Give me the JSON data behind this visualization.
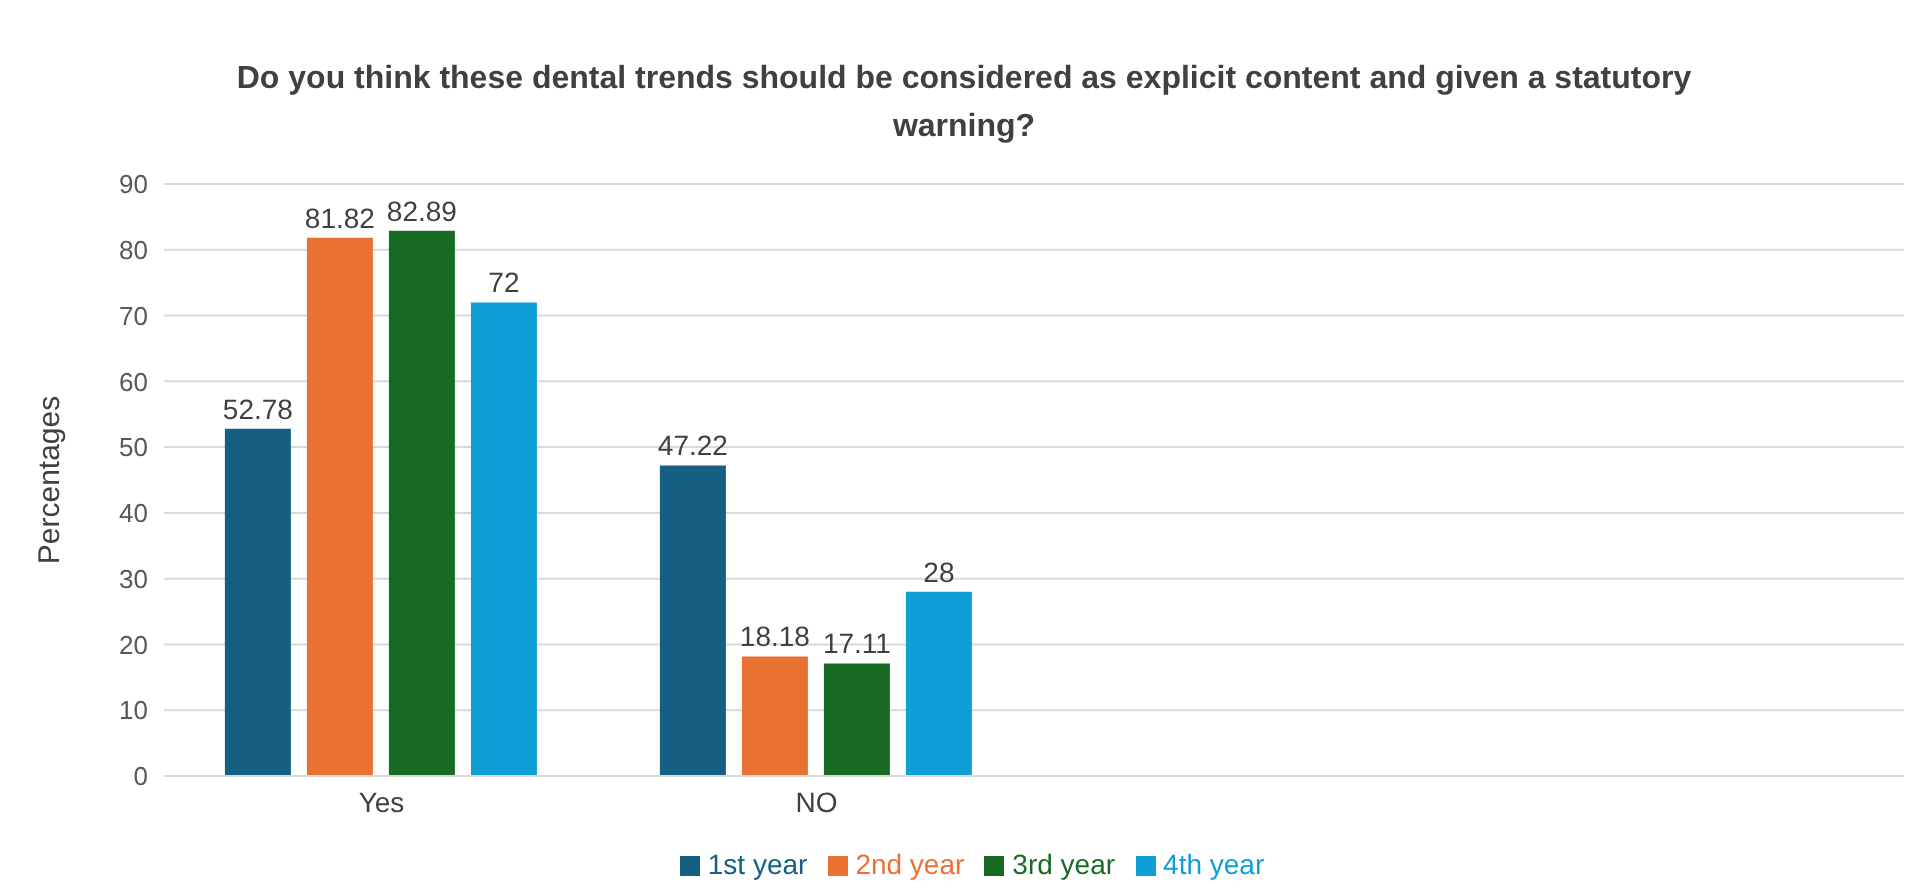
{
  "chart_data": {
    "type": "bar",
    "title": "Do you think these dental trends should  be considered as explicit content and given a statutory  warning?",
    "ylabel": "Percentages",
    "categories": [
      "Yes",
      "NO",
      null,
      null
    ],
    "series": [
      {
        "name": "1st year",
        "color": "#156082",
        "values": [
          52.78,
          47.22,
          null,
          null
        ]
      },
      {
        "name": "2nd year",
        "color": "#e97132",
        "values": [
          81.82,
          18.18,
          null,
          null
        ]
      },
      {
        "name": "3rd year",
        "color": "#196b24",
        "values": [
          82.89,
          17.11,
          null,
          null
        ]
      },
      {
        "name": "4th year",
        "color": "#0f9ed5",
        "values": [
          72,
          28,
          null,
          null
        ]
      }
    ],
    "ylim": [
      0,
      90
    ],
    "yticks": [
      0,
      10,
      20,
      30,
      40,
      50,
      60,
      70,
      80,
      90
    ],
    "grid": "y",
    "legend": "bottom",
    "data_labels": true
  }
}
